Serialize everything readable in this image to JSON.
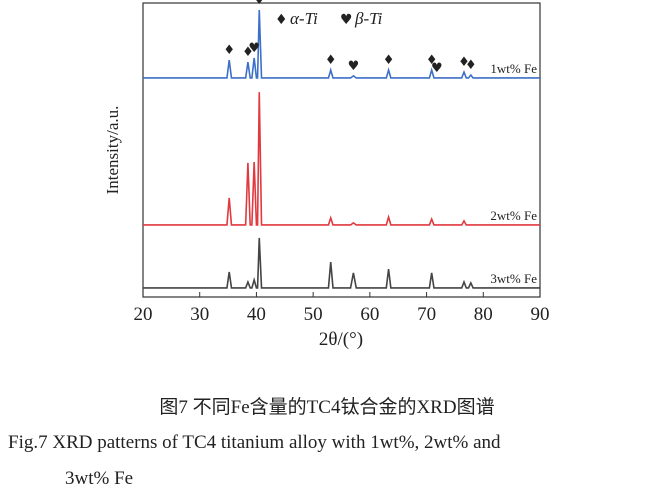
{
  "chart_data": {
    "type": "line",
    "xlabel": "2θ/(°)",
    "ylabel": "Intensity/a.u.",
    "xlim": [
      20,
      90
    ],
    "xticks": [
      20,
      30,
      40,
      50,
      60,
      70,
      80,
      90
    ],
    "ylim": [
      0,
      100
    ],
    "x": [
      20,
      34.8,
      35.2,
      35.6,
      38.1,
      38.5,
      38.9,
      39.2,
      39.6,
      40.0,
      40.2,
      40.5,
      40.9,
      52.7,
      53.1,
      53.5,
      56.6,
      57.1,
      57.6,
      62.9,
      63.3,
      63.7,
      70.5,
      70.9,
      71.3,
      76.2,
      76.6,
      77.0,
      77.4,
      77.8,
      78.2,
      90
    ],
    "series": [
      {
        "name": "1wt% Fe",
        "color": "#3c6fc8",
        "values": [
          74.5,
          74.5,
          80.6,
          74.5,
          74.5,
          79.9,
          74.5,
          74.5,
          81.3,
          74.5,
          74.5,
          97.6,
          74.5,
          74.5,
          77.2,
          74.5,
          74.5,
          75.2,
          74.5,
          74.5,
          77.2,
          74.5,
          74.5,
          77.2,
          74.5,
          74.5,
          76.5,
          74.5,
          74.5,
          75.5,
          74.5,
          74.5
        ]
      },
      {
        "name": "2wt% Fe",
        "color": "#e0393e",
        "values": [
          24.5,
          24.5,
          33.7,
          24.5,
          24.5,
          45.6,
          24.5,
          24.5,
          45.9,
          24.5,
          24.5,
          69.7,
          24.5,
          24.5,
          26.9,
          24.5,
          24.5,
          25.2,
          24.5,
          24.5,
          27.2,
          24.5,
          24.5,
          26.5,
          24.5,
          24.5,
          25.9,
          24.5,
          24.5,
          24.5,
          24.5,
          24.5
        ]
      },
      {
        "name": "3wt% Fe",
        "color": "#444444",
        "values": [
          3.1,
          3.1,
          8.5,
          3.1,
          3.1,
          5.1,
          3.1,
          3.1,
          5.8,
          3.1,
          3.1,
          20.1,
          3.1,
          3.1,
          11.9,
          3.1,
          3.1,
          8.2,
          3.1,
          3.1,
          9.5,
          3.1,
          3.1,
          8.2,
          3.1,
          3.1,
          5.1,
          3.1,
          3.1,
          4.8,
          3.1,
          3.1
        ]
      }
    ],
    "peak_markers": [
      {
        "text": "♦",
        "x": 35.2
      },
      {
        "text": "♦",
        "x": 38.5
      },
      {
        "text": "♥",
        "x": 39.6
      },
      {
        "text": "♦",
        "x": 40.5
      },
      {
        "text": "♦",
        "x": 53.1
      },
      {
        "text": "♥",
        "x": 57.1
      },
      {
        "text": "♦",
        "x": 63.3
      },
      {
        "text": "♦",
        "x": 70.9
      },
      {
        "text": "♥",
        "x": 71.8
      },
      {
        "text": "♦",
        "x": 76.6
      },
      {
        "text": "♦",
        "x": 77.8
      }
    ],
    "phase_legend": [
      {
        "symbol": "♦",
        "label": "α-Ti"
      },
      {
        "symbol": "♥",
        "label": "β-Ti"
      }
    ]
  },
  "caption": {
    "chinese": "图7  不同Fe含量的TC4钛合金的XRD图谱",
    "english_line1": "Fig.7  XRD patterns of TC4 titanium alloy with 1wt%, 2wt% and",
    "english_line2": "3wt% Fe"
  }
}
